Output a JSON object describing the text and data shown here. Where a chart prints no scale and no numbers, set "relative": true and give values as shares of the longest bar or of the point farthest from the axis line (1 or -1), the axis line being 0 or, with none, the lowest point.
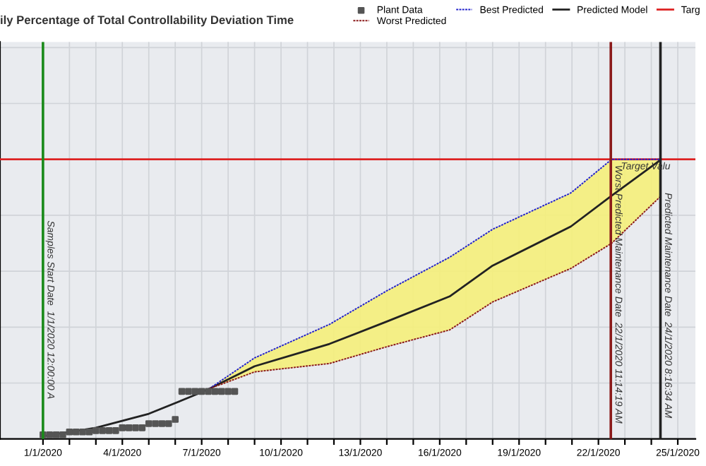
{
  "chart_data": {
    "type": "line",
    "title": "ily Percentage of Total Controllability Deviation Time",
    "relative": true,
    "grid": true,
    "legend": "top right",
    "xlim": [
      "2019-12-30T09:00",
      "2020-01-25T16:00"
    ],
    "xticks": [
      {
        "value": "2020-01-01",
        "label": "1/1/2020"
      },
      {
        "value": "2020-01-02",
        "label": null
      },
      {
        "value": "2020-01-03",
        "label": null
      },
      {
        "value": "2020-01-04",
        "label": "4/1/2020"
      },
      {
        "value": "2020-01-05",
        "label": null
      },
      {
        "value": "2020-01-06",
        "label": null
      },
      {
        "value": "2020-01-07",
        "label": "7/1/2020"
      },
      {
        "value": "2020-01-08",
        "label": null
      },
      {
        "value": "2020-01-09",
        "label": null
      },
      {
        "value": "2020-01-10",
        "label": "10/1/2020"
      },
      {
        "value": "2020-01-11",
        "label": null
      },
      {
        "value": "2020-01-12",
        "label": null
      },
      {
        "value": "2020-01-13",
        "label": "13/1/2020"
      },
      {
        "value": "2020-01-14",
        "label": null
      },
      {
        "value": "2020-01-15",
        "label": null
      },
      {
        "value": "2020-01-16",
        "label": "16/1/2020"
      },
      {
        "value": "2020-01-17",
        "label": null
      },
      {
        "value": "2020-01-18",
        "label": null
      },
      {
        "value": "2020-01-19",
        "label": "19/1/2020"
      },
      {
        "value": "2020-01-20",
        "label": null
      },
      {
        "value": "2020-01-21",
        "label": null
      },
      {
        "value": "2020-01-22",
        "label": "22/1/2020"
      },
      {
        "value": "2020-01-23",
        "label": null
      },
      {
        "value": "2020-01-24",
        "label": null
      },
      {
        "value": "2020-01-25",
        "label": "25/1/2020"
      }
    ],
    "series": [
      {
        "name": "Plant Data",
        "type": "scatter",
        "marker": "square",
        "color": "#555555",
        "x": [
          "2020-01-01T00:00",
          "2020-01-01T06:00",
          "2020-01-01T12:00",
          "2020-01-01T18:00",
          "2020-01-02T00:00",
          "2020-01-02T06:00",
          "2020-01-02T12:00",
          "2020-01-02T18:00",
          "2020-01-03T00:00",
          "2020-01-03T06:00",
          "2020-01-03T12:00",
          "2020-01-03T18:00",
          "2020-01-04T00:00",
          "2020-01-04T06:00",
          "2020-01-04T12:00",
          "2020-01-04T18:00",
          "2020-01-05T00:00",
          "2020-01-05T06:00",
          "2020-01-05T12:00",
          "2020-01-05T18:00",
          "2020-01-06T00:00",
          "2020-01-06T06:00",
          "2020-01-06T12:00",
          "2020-01-06T18:00",
          "2020-01-07T00:00",
          "2020-01-07T06:00",
          "2020-01-07T12:00",
          "2020-01-07T18:00",
          "2020-01-08T00:00",
          "2020-01-08T06:00"
        ],
        "values": [
          0.015,
          0.015,
          0.015,
          0.015,
          0.025,
          0.025,
          0.025,
          0.025,
          0.03,
          0.03,
          0.03,
          0.03,
          0.04,
          0.04,
          0.04,
          0.04,
          0.055,
          0.055,
          0.055,
          0.055,
          0.07,
          0.17,
          0.17,
          0.17,
          0.17,
          0.17,
          0.17,
          0.17,
          0.17,
          0.17
        ]
      },
      {
        "name": "Worst Predicted",
        "line_style": "dashed",
        "color": "#8b1a1a",
        "x": [
          "2020-01-07T07:00",
          "2020-01-09",
          "2020-01-11T20:00",
          "2020-01-14",
          "2020-01-16T09:00",
          "2020-01-18",
          "2020-01-20T23:00",
          "2020-01-22T12:00",
          "2020-01-24T09:00"
        ],
        "values": [
          0.18,
          0.24,
          0.27,
          0.33,
          0.39,
          0.49,
          0.61,
          0.7,
          0.87
        ]
      },
      {
        "name": "Best Predicted",
        "line_style": "dashed",
        "color": "#2222cc",
        "x": [
          "2020-01-07T07:00",
          "2020-01-09",
          "2020-01-11T20:00",
          "2020-01-14",
          "2020-01-16T09:00",
          "2020-01-18",
          "2020-01-20T23:00",
          "2020-01-22T12:00",
          "2020-01-24T09:00"
        ],
        "values": [
          0.18,
          0.29,
          0.41,
          0.53,
          0.65,
          0.75,
          0.88,
          1.0,
          1.0
        ]
      },
      {
        "name": "Predicted Model",
        "line_style": "solid",
        "color": "#222222",
        "x": [
          "2020-01-01",
          "2020-01-03",
          "2020-01-05",
          "2020-01-07",
          "2020-01-07T07:00",
          "2020-01-09",
          "2020-01-11T20:00",
          "2020-01-14",
          "2020-01-16T09:00",
          "2020-01-18",
          "2020-01-20T23:00",
          "2020-01-22T12:00",
          "2020-01-24T09:00"
        ],
        "values": [
          0.01,
          0.04,
          0.09,
          0.167,
          0.18,
          0.26,
          0.34,
          0.42,
          0.51,
          0.62,
          0.76,
          0.87,
          1.0
        ],
        "lower": [
          null,
          null,
          null,
          null,
          0.18,
          0.24,
          0.27,
          0.33,
          0.39,
          0.49,
          0.61,
          0.7,
          0.87
        ],
        "upper": [
          null,
          null,
          null,
          null,
          0.18,
          0.29,
          0.41,
          0.53,
          0.65,
          0.75,
          0.88,
          1.0,
          1.0
        ]
      },
      {
        "name": "Targ",
        "line_style": "solid",
        "color": "#dd2222",
        "x": [
          "2019-12-30T09:00",
          "2020-01-25T16:00"
        ],
        "values": [
          1.0,
          1.0
        ]
      }
    ],
    "ref_lines": [
      {
        "axis": "x",
        "value": "2020-01-01",
        "label": "Samples Start Date  1/1/2020 12:00:00 A",
        "color": "#1a8a1a"
      },
      {
        "axis": "x",
        "value": "2020-01-22T11:14:19",
        "label": "Worst Predicted Maintenance Date  22/1/2020 11:14:19 AM",
        "color": "#8b1a1a"
      },
      {
        "axis": "x",
        "value": "2020-01-24T08:16:34",
        "label": "Predicted Maintenance Date  24/1/2020 8:16:34 AM",
        "color": "#222222"
      }
    ],
    "annotations": [
      {
        "text": "Target Valu",
        "x": "2020-01-22T12:00",
        "y": 1.0
      }
    ]
  }
}
